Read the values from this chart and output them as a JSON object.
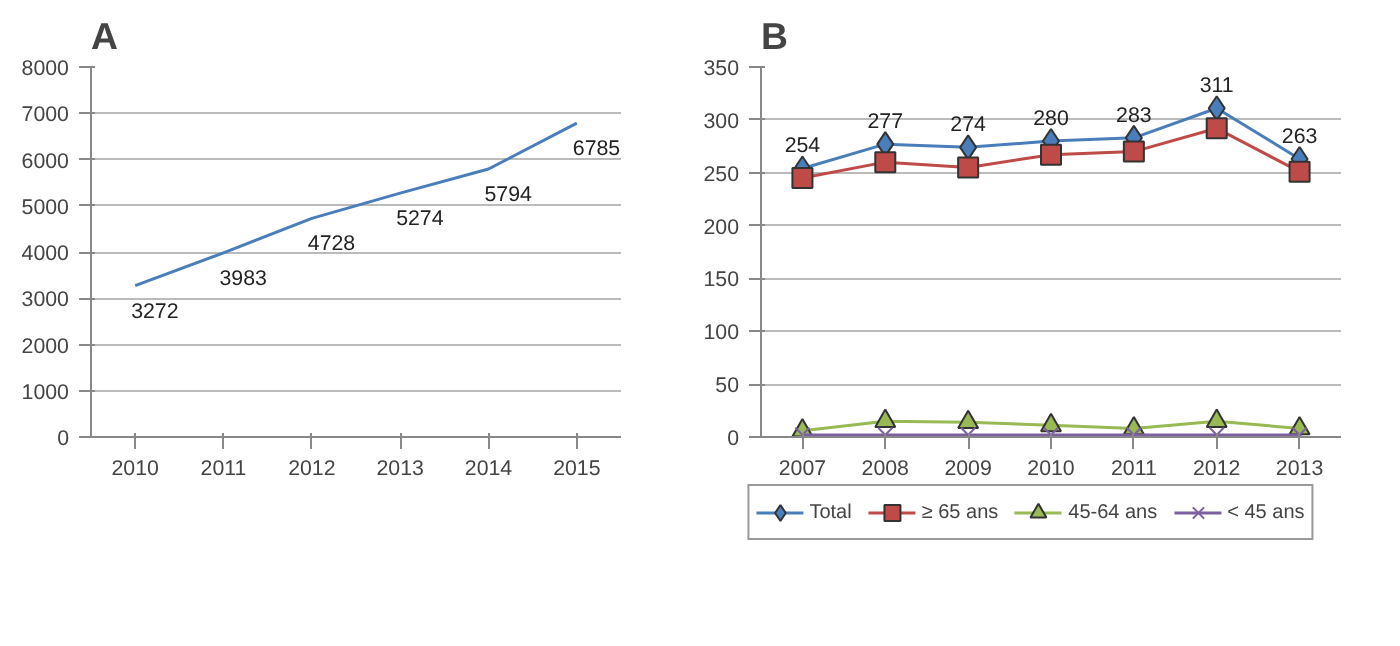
{
  "chart_data": [
    {
      "type": "line",
      "title": "A",
      "categories": [
        "2010",
        "2011",
        "2012",
        "2013",
        "2014",
        "2015"
      ],
      "series": [
        {
          "color": "#4a7ebb",
          "values": [
            3272,
            3983,
            4728,
            5274,
            5794,
            6785
          ]
        }
      ],
      "ylim": [
        0,
        8000
      ],
      "yticks": [
        0,
        1000,
        2000,
        3000,
        4000,
        5000,
        6000,
        7000,
        8000
      ],
      "grid": "y",
      "data_labels": true,
      "marker": "none",
      "line_style": "solid"
    },
    {
      "type": "line",
      "title": "B",
      "categories": [
        "2007",
        "2008",
        "2009",
        "2010",
        "2011",
        "2012",
        "2013"
      ],
      "series": [
        {
          "name": "Total",
          "color": "#4a7ebb",
          "marker": "diamond",
          "values": [
            254,
            277,
            274,
            280,
            283,
            311,
            263
          ],
          "value_labels": [
            "254",
            "277",
            "274",
            "280",
            "283",
            "311",
            "263"
          ]
        },
        {
          "name": "≥ 65 ans",
          "color": "#be4b48",
          "marker": "square",
          "values": [
            245,
            260,
            255,
            267,
            270,
            292,
            251
          ]
        },
        {
          "name": "45-64 ans",
          "color": "#98b954",
          "marker": "triangle",
          "values": [
            6,
            15,
            14,
            11,
            8,
            15,
            8
          ]
        },
        {
          "name": "< 45 ans",
          "color": "#7d60a0",
          "marker": "cross",
          "values": [
            2,
            2,
            2,
            2,
            2,
            2,
            2
          ]
        }
      ],
      "ylim": [
        0,
        350
      ],
      "yticks": [
        0,
        50,
        100,
        150,
        200,
        250,
        300,
        350
      ],
      "grid": "y",
      "legend": "bottom",
      "line_style": "solid"
    }
  ]
}
